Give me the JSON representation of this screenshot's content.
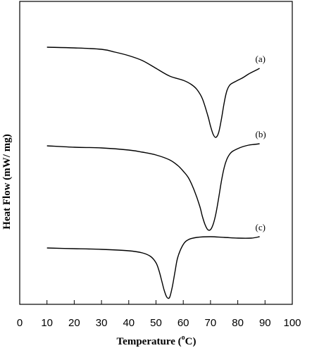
{
  "chart_data": {
    "type": "line",
    "xlabel_main": "Temperature (",
    "xlabel_sup": "o",
    "xlabel_end": "C)",
    "ylabel": "Heat Flow (mW/ mg)",
    "xlim": [
      0,
      100
    ],
    "xticks": [
      "0",
      "10",
      "20",
      "30",
      "40",
      "50",
      "60",
      "70",
      "80",
      "90",
      "100"
    ],
    "grid": false,
    "y_ticks_shown": false,
    "series": [
      {
        "name": "(a)",
        "x": [
          10,
          20,
          30,
          35,
          40,
          45,
          50,
          55,
          60,
          63,
          65,
          67,
          69,
          70,
          71,
          72,
          73,
          74,
          75,
          76,
          77,
          78,
          79,
          80,
          82,
          84,
          86,
          88
        ],
        "y": [
          365,
          364,
          362,
          358,
          353,
          346,
          335,
          324,
          318,
          312,
          305,
          292,
          268,
          253,
          241,
          237,
          244,
          263,
          286,
          303,
          311,
          314,
          316,
          318,
          322,
          327,
          331,
          335
        ]
      },
      {
        "name": "(b)",
        "x": [
          10,
          20,
          30,
          40,
          45,
          50,
          55,
          58,
          60,
          62,
          64,
          66,
          67,
          68,
          69,
          70,
          71,
          72,
          73,
          74,
          75,
          76,
          77,
          78,
          80,
          82,
          84,
          86,
          88
        ],
        "y": [
          225,
          223,
          222,
          219,
          216,
          212,
          205,
          197,
          189,
          179,
          162,
          140,
          125,
          113,
          106,
          106,
          114,
          129,
          151,
          175,
          194,
          206,
          213,
          217,
          221,
          224,
          226,
          227,
          228
        ]
      },
      {
        "name": "(c)",
        "x": [
          10,
          20,
          30,
          40,
          45,
          48,
          50,
          51,
          52,
          53,
          54,
          55,
          56,
          57,
          58,
          60,
          62,
          65,
          70,
          75,
          80,
          85,
          88
        ],
        "y": [
          80,
          79,
          78,
          76,
          73,
          68,
          59,
          49,
          35,
          20,
          10,
          10,
          25,
          47,
          67,
          85,
          92,
          95,
          96,
          95,
          94,
          94,
          96
        ]
      }
    ]
  }
}
